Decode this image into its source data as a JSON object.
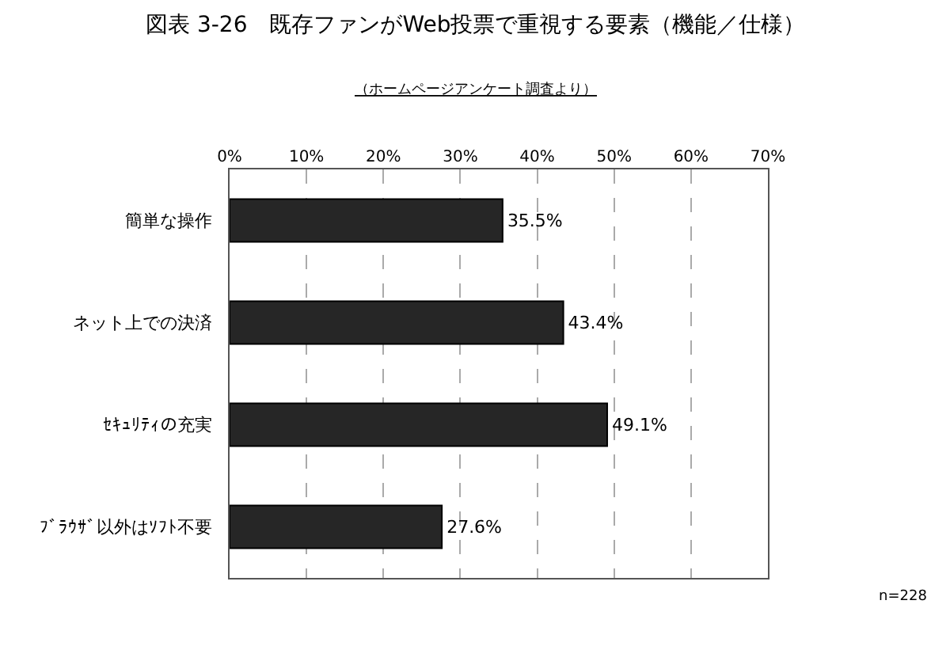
{
  "chart_data": {
    "type": "bar",
    "orientation": "horizontal",
    "title": "図表 3-26　既存ファンがWeb投票で重視する要素（機能／仕様）",
    "subtitle": "（ホームページアンケート調査より）",
    "categories": [
      "簡単な操作",
      "ネット上での決済",
      "ｾｷｭﾘﾃｨの充実",
      "ﾌﾞﾗｳｻﾞ以外はｿﾌﾄ不要"
    ],
    "values": [
      35.5,
      43.4,
      49.1,
      27.6
    ],
    "value_labels": [
      "35.5%",
      "43.4%",
      "49.1%",
      "27.6%"
    ],
    "color": "#262626",
    "xlim": [
      0,
      70
    ],
    "xticks": [
      {
        "value": 0,
        "label": "0%"
      },
      {
        "value": 10,
        "label": "10%"
      },
      {
        "value": 20,
        "label": "20%"
      },
      {
        "value": 30,
        "label": "30%"
      },
      {
        "value": 40,
        "label": "40%"
      },
      {
        "value": 50,
        "label": "50%"
      },
      {
        "value": 60,
        "label": "60%"
      },
      {
        "value": 70,
        "label": "70%"
      }
    ],
    "grid": "x",
    "legend": false,
    "annotations": [
      "n=228"
    ]
  }
}
